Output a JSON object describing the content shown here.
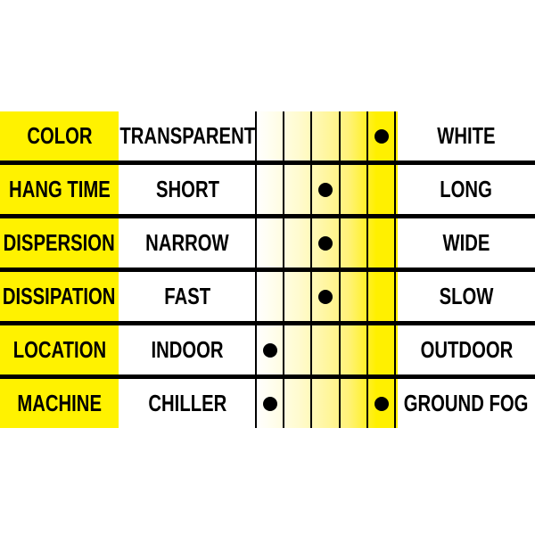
{
  "colors": {
    "label_bg": "#fff200",
    "scale_end": "#fff000",
    "separator": "#000000"
  },
  "scale_steps": 5,
  "rows": [
    {
      "label": "COLOR",
      "left": "TRANSPARENT",
      "right": "WHITE",
      "marks": [
        5
      ]
    },
    {
      "label": "HANG TIME",
      "left": "SHORT",
      "right": "LONG",
      "marks": [
        3
      ]
    },
    {
      "label": "DISPERSION",
      "left": "NARROW",
      "right": "WIDE",
      "marks": [
        3
      ]
    },
    {
      "label": "DISSIPATION",
      "left": "FAST",
      "right": "SLOW",
      "marks": [
        3
      ]
    },
    {
      "label": "LOCATION",
      "left": "INDOOR",
      "right": "OUTDOOR",
      "marks": [
        1
      ]
    },
    {
      "label": "MACHINE",
      "left": "CHILLER",
      "right": "GROUND FOG",
      "marks": [
        1,
        5
      ]
    }
  ]
}
